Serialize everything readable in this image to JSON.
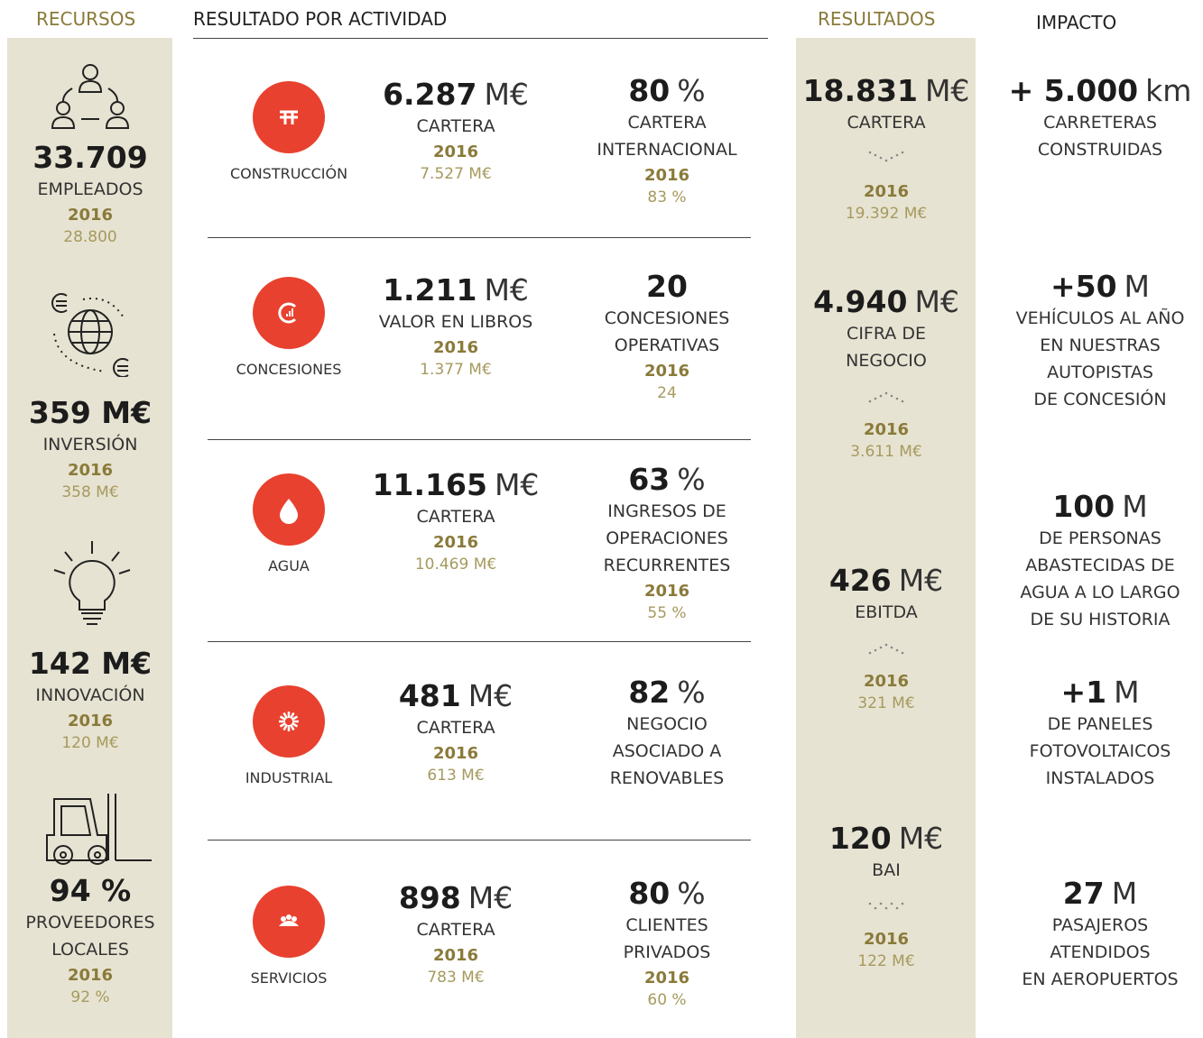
{
  "headers": {
    "recursos": "RECURSOS",
    "actividad": "RESULTADO POR ACTIVIDAD",
    "resultados": "RESULTADOS",
    "impacto": "IMPACTO"
  },
  "resources": [
    {
      "value": "33.709",
      "label": [
        "EMPLEADOS"
      ],
      "year": "2016",
      "prev": "28.800"
    },
    {
      "value": "359 M€",
      "label": [
        "INVERSIÓN"
      ],
      "year": "2016",
      "prev": "358 M€"
    },
    {
      "value": "142 M€",
      "label": [
        "INNOVACIÓN"
      ],
      "year": "2016",
      "prev": "120 M€"
    },
    {
      "value": "94 %",
      "label": [
        "PROVEEDORES",
        "LOCALES"
      ],
      "year": "2016",
      "prev": "92 %"
    }
  ],
  "activities": [
    {
      "name": "CONSTRUCCIÓN",
      "main": {
        "value": "6.287",
        "unit": "M€",
        "label": [
          "CARTERA"
        ],
        "year": "2016",
        "prev": "7.527 M€"
      },
      "secondary": {
        "value": "80",
        "unit": "%",
        "label": [
          "CARTERA",
          "INTERNACIONAL"
        ],
        "year": "2016",
        "prev": "83 %"
      }
    },
    {
      "name": "CONCESIONES",
      "main": {
        "value": "1.211",
        "unit": "M€",
        "label": [
          "VALOR EN LIBROS"
        ],
        "year": "2016",
        "prev": "1.377 M€"
      },
      "secondary": {
        "value": "20",
        "label": [
          "CONCESIONES",
          "OPERATIVAS"
        ],
        "year": "2016",
        "prev": "24"
      }
    },
    {
      "name": "AGUA",
      "main": {
        "value": "11.165",
        "unit": "M€",
        "label": [
          "CARTERA"
        ],
        "year": "2016",
        "prev": "10.469 M€"
      },
      "secondary": {
        "value": "63",
        "unit": "%",
        "label": [
          "INGRESOS DE",
          "OPERACIONES",
          "RECURRENTES"
        ],
        "year": "2016",
        "prev": "55 %"
      }
    },
    {
      "name": "INDUSTRIAL",
      "main": {
        "value": "481",
        "unit": "M€",
        "label": [
          "CARTERA"
        ],
        "year": "2016",
        "prev": "613 M€"
      },
      "secondary": {
        "value": "82",
        "unit": "%",
        "label": [
          "NEGOCIO",
          "ASOCIADO A",
          "RENOVABLES"
        ]
      }
    },
    {
      "name": "SERVICIOS",
      "main": {
        "value": "898",
        "unit": "M€",
        "label": [
          "CARTERA"
        ],
        "year": "2016",
        "prev": "783 M€"
      },
      "secondary": {
        "value": "80",
        "unit": "%",
        "label": [
          "CLIENTES",
          "PRIVADOS"
        ],
        "year": "2016",
        "prev": "60 %"
      }
    }
  ],
  "results": [
    {
      "value": "18.831",
      "unit": "M€",
      "label": [
        "CARTERA"
      ],
      "year": "2016",
      "prev": "19.392 M€"
    },
    {
      "value": "4.940",
      "unit": "M€",
      "label": [
        "CIFRA DE",
        "NEGOCIO"
      ],
      "year": "2016",
      "prev": "3.611 M€"
    },
    {
      "value": "426",
      "unit": "M€",
      "label": [
        "EBITDA"
      ],
      "year": "2016",
      "prev": "321 M€"
    },
    {
      "value": "120",
      "unit": "M€",
      "label": [
        "BAI"
      ],
      "year": "2016",
      "prev": "122 M€"
    }
  ],
  "impact": [
    {
      "value": "+ 5.000",
      "unit": "km",
      "label": [
        "CARRETERAS",
        "CONSTRUIDAS"
      ]
    },
    {
      "value": "+50",
      "unit": "M",
      "label": [
        "VEHÍCULOS AL AÑO",
        "EN NUESTRAS",
        "AUTOPISTAS",
        "DE CONCESIÓN"
      ]
    },
    {
      "value": "100",
      "unit": "M",
      "label": [
        "DE PERSONAS",
        "ABASTECIDAS DE",
        "AGUA A LO LARGO",
        "DE SU HISTORIA"
      ]
    },
    {
      "value": "+1",
      "unit": "M",
      "label": [
        "DE PANELES",
        "FOTOVOLTAICOS",
        "INSTALADOS"
      ]
    },
    {
      "value": "27",
      "unit": "M",
      "label": [
        "PASAJEROS",
        "ATENDIDOS",
        "EN AEROPUERTOS"
      ]
    }
  ]
}
